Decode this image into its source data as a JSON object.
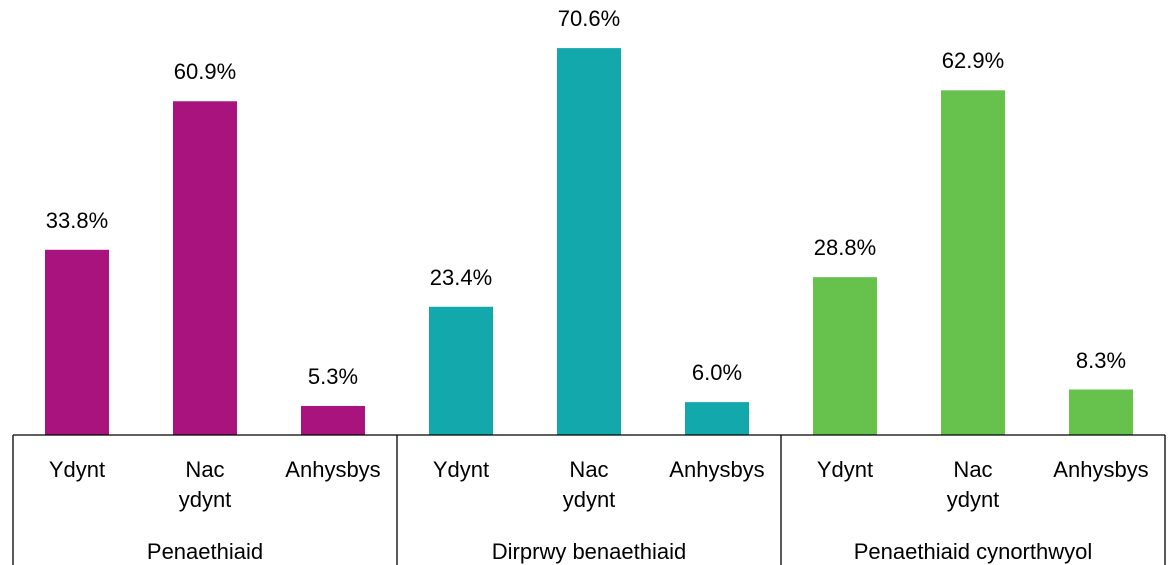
{
  "chart_data": {
    "type": "bar",
    "groups": [
      {
        "name": "Penaethiaid",
        "color": "#a8137d",
        "categories": [
          "Ydynt",
          "Nac ydynt",
          "Anhysbys"
        ],
        "values": [
          33.8,
          60.9,
          5.3
        ],
        "value_labels": [
          "33.8%",
          "60.9%",
          "5.3%"
        ]
      },
      {
        "name": "Dirprwy benaethiaid",
        "color": "#13a8ac",
        "categories": [
          "Ydynt",
          "Nac ydynt",
          "Anhysbys"
        ],
        "values": [
          23.4,
          70.6,
          6.0
        ],
        "value_labels": [
          "23.4%",
          "70.6%",
          "6.0%"
        ]
      },
      {
        "name": "Penaethiaid cynorthwyol",
        "color": "#66c24d",
        "categories": [
          "Ydynt",
          "Nac ydynt",
          "Anhysbys"
        ],
        "values": [
          28.8,
          62.9,
          8.3
        ],
        "value_labels": [
          "28.8%",
          "62.9%",
          "8.3%"
        ]
      }
    ]
  }
}
